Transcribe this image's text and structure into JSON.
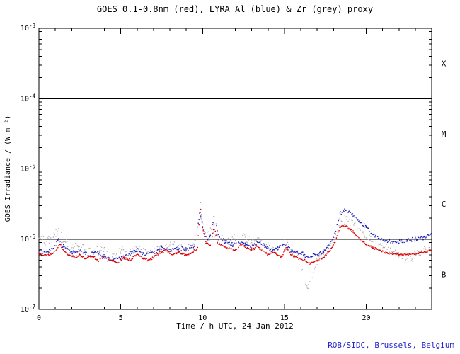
{
  "chart_data": {
    "type": "scatter",
    "title": "GOES 0.1-0.8nm (red), LYRA Al (blue) & Zr (grey) proxy",
    "xlabel": "Time / h UTC, 24 Jan 2012",
    "ylabel": "GOES Irradiance / (W m⁻²)",
    "credit": "ROB/SIDC, Brussels, Belgium",
    "x_range": [
      0,
      24
    ],
    "y_range_log10": [
      -7,
      -3
    ],
    "x_ticks": [
      0,
      5,
      10,
      15,
      20
    ],
    "x_minor_tick_step": 1,
    "y_tick_exponents": [
      -3,
      -4,
      -5,
      -6,
      -7
    ],
    "grid": false,
    "legend_position": "none",
    "threshold_lines": [
      0.0001,
      1e-05,
      1e-06
    ],
    "flare_class_labels": [
      {
        "label": "X",
        "log_center": -3.5
      },
      {
        "label": "M",
        "log_center": -4.5
      },
      {
        "label": "C",
        "log_center": -5.5
      },
      {
        "label": "B",
        "log_center": -6.5
      }
    ],
    "colors": {
      "goes_red": "#dd0000",
      "lyra_al_blue": "#2222bb",
      "lyra_zr_grey": "#a8a8a8",
      "credit_blue": "#2222cc",
      "axes": "#000000"
    },
    "series": [
      {
        "name": "GOES 0.1-0.8nm",
        "color": "#dd0000",
        "jitter_log": 0.016,
        "skip_fraction": 0.05,
        "dot_radius": 0.8,
        "points": [
          [
            0.0,
            6.2e-07
          ],
          [
            0.3,
            5.8e-07
          ],
          [
            0.6,
            6e-07
          ],
          [
            1.0,
            6.5e-07
          ],
          [
            1.3,
            8.5e-07
          ],
          [
            1.5,
            7e-07
          ],
          [
            1.8,
            6e-07
          ],
          [
            2.2,
            5.5e-07
          ],
          [
            2.5,
            6e-07
          ],
          [
            2.8,
            5.2e-07
          ],
          [
            3.2,
            5.8e-07
          ],
          [
            3.6,
            5e-07
          ],
          [
            4.0,
            5.5e-07
          ],
          [
            4.4,
            5e-07
          ],
          [
            4.8,
            4.6e-07
          ],
          [
            5.2,
            5.5e-07
          ],
          [
            5.6,
            5e-07
          ],
          [
            6.0,
            6.2e-07
          ],
          [
            6.3,
            5.5e-07
          ],
          [
            6.7,
            5e-07
          ],
          [
            7.0,
            5.5e-07
          ],
          [
            7.4,
            6.5e-07
          ],
          [
            7.8,
            7e-07
          ],
          [
            8.1,
            6e-07
          ],
          [
            8.5,
            6.5e-07
          ],
          [
            9.0,
            6e-07
          ],
          [
            9.4,
            6.5e-07
          ],
          [
            9.7,
            7.5e-07
          ],
          [
            9.85,
            3.3e-06
          ],
          [
            10.0,
            1.5e-06
          ],
          [
            10.2,
            9e-07
          ],
          [
            10.5,
            8e-07
          ],
          [
            10.7,
            1.6e-06
          ],
          [
            10.9,
            9e-07
          ],
          [
            11.2,
            8e-07
          ],
          [
            11.5,
            7.5e-07
          ],
          [
            12.0,
            7e-07
          ],
          [
            12.4,
            8.5e-07
          ],
          [
            12.7,
            7.5e-07
          ],
          [
            13.0,
            7e-07
          ],
          [
            13.3,
            8e-07
          ],
          [
            13.6,
            7e-07
          ],
          [
            14.0,
            6e-07
          ],
          [
            14.4,
            6.5e-07
          ],
          [
            14.8,
            5.5e-07
          ],
          [
            15.1,
            7.5e-07
          ],
          [
            15.4,
            6e-07
          ],
          [
            15.8,
            5.5e-07
          ],
          [
            16.2,
            5e-07
          ],
          [
            16.6,
            4.5e-07
          ],
          [
            17.0,
            5e-07
          ],
          [
            17.4,
            5.5e-07
          ],
          [
            17.8,
            7e-07
          ],
          [
            18.1,
            9e-07
          ],
          [
            18.4,
            1.5e-06
          ],
          [
            18.7,
            1.6e-06
          ],
          [
            19.0,
            1.4e-06
          ],
          [
            19.3,
            1.2e-06
          ],
          [
            19.6,
            1e-06
          ],
          [
            20.0,
            8.5e-07
          ],
          [
            20.4,
            7.5e-07
          ],
          [
            20.8,
            7e-07
          ],
          [
            21.2,
            6.5e-07
          ],
          [
            21.6,
            6.2e-07
          ],
          [
            22.0,
            6e-07
          ],
          [
            22.5,
            6e-07
          ],
          [
            23.0,
            6.2e-07
          ],
          [
            23.5,
            6.5e-07
          ],
          [
            24.0,
            7e-07
          ]
        ]
      },
      {
        "name": "LYRA Al proxy",
        "color": "#2222bb",
        "jitter_log": 0.03,
        "skip_fraction": 0.15,
        "dot_radius": 0.8,
        "points": [
          [
            0.0,
            7e-07
          ],
          [
            0.4,
            6.5e-07
          ],
          [
            0.8,
            7e-07
          ],
          [
            1.2,
            9.5e-07
          ],
          [
            1.5,
            8e-07
          ],
          [
            2.0,
            6.5e-07
          ],
          [
            2.5,
            7e-07
          ],
          [
            3.0,
            6e-07
          ],
          [
            3.5,
            6.5e-07
          ],
          [
            4.0,
            5.5e-07
          ],
          [
            4.5,
            5e-07
          ],
          [
            5.0,
            5.5e-07
          ],
          [
            5.5,
            6e-07
          ],
          [
            6.0,
            7e-07
          ],
          [
            6.5,
            6e-07
          ],
          [
            7.0,
            6.5e-07
          ],
          [
            7.5,
            7.5e-07
          ],
          [
            8.0,
            7e-07
          ],
          [
            8.5,
            7.5e-07
          ],
          [
            9.0,
            7e-07
          ],
          [
            9.5,
            8e-07
          ],
          [
            9.85,
            2.5e-06
          ],
          [
            10.1,
            1.2e-06
          ],
          [
            10.4,
            9.5e-07
          ],
          [
            10.7,
            2e-06
          ],
          [
            11.0,
            1.1e-06
          ],
          [
            11.4,
            9e-07
          ],
          [
            11.8,
            8.5e-07
          ],
          [
            12.2,
            9.5e-07
          ],
          [
            12.6,
            8.5e-07
          ],
          [
            13.0,
            8e-07
          ],
          [
            13.4,
            9e-07
          ],
          [
            13.8,
            8e-07
          ],
          [
            14.2,
            7e-07
          ],
          [
            14.6,
            7.5e-07
          ],
          [
            15.0,
            8.5e-07
          ],
          [
            15.4,
            7e-07
          ],
          [
            15.8,
            6.5e-07
          ],
          [
            16.2,
            6e-07
          ],
          [
            16.6,
            5.5e-07
          ],
          [
            17.0,
            6e-07
          ],
          [
            17.4,
            6.5e-07
          ],
          [
            17.8,
            8.5e-07
          ],
          [
            18.1,
            1.2e-06
          ],
          [
            18.4,
            2.3e-06
          ],
          [
            18.7,
            2.6e-06
          ],
          [
            19.0,
            2.4e-06
          ],
          [
            19.3,
            2.1e-06
          ],
          [
            19.6,
            1.8e-06
          ],
          [
            20.0,
            1.5e-06
          ],
          [
            20.3,
            1.2e-06
          ],
          [
            20.7,
            1.05e-06
          ],
          [
            21.1,
            9.5e-07
          ],
          [
            21.5,
            9e-07
          ],
          [
            22.0,
            9e-07
          ],
          [
            22.5,
            9.5e-07
          ],
          [
            23.0,
            1e-06
          ],
          [
            23.5,
            1.05e-06
          ],
          [
            24.0,
            1.2e-06
          ]
        ]
      },
      {
        "name": "LYRA Zr proxy",
        "color": "#a8a8a8",
        "jitter_log": 0.06,
        "skip_fraction": 0.35,
        "dot_radius": 0.7,
        "points": [
          [
            0.0,
            1e-06
          ],
          [
            0.4,
            9e-07
          ],
          [
            0.8,
            1.1e-06
          ],
          [
            1.2,
            1.3e-06
          ],
          [
            1.6,
            9e-07
          ],
          [
            2.0,
            7.5e-07
          ],
          [
            2.4,
            8.5e-07
          ],
          [
            2.8,
            7e-07
          ],
          [
            3.2,
            8e-07
          ],
          [
            3.6,
            6.5e-07
          ],
          [
            4.0,
            7.5e-07
          ],
          [
            4.5,
            6e-07
          ],
          [
            5.0,
            7e-07
          ],
          [
            5.5,
            6.5e-07
          ],
          [
            6.0,
            7.5e-07
          ],
          [
            6.5,
            6.5e-07
          ],
          [
            7.0,
            7e-07
          ],
          [
            7.5,
            8e-07
          ],
          [
            8.0,
            7.5e-07
          ],
          [
            8.5,
            8.5e-07
          ],
          [
            9.0,
            7.5e-07
          ],
          [
            9.5,
            8.5e-07
          ],
          [
            9.85,
            2.2e-06
          ],
          [
            10.2,
            1.1e-06
          ],
          [
            10.6,
            1.3e-06
          ],
          [
            11.0,
            1e-06
          ],
          [
            11.5,
            9e-07
          ],
          [
            12.0,
            1e-06
          ],
          [
            12.5,
            1.1e-06
          ],
          [
            13.0,
            9e-07
          ],
          [
            13.5,
            1e-06
          ],
          [
            14.0,
            8e-07
          ],
          [
            14.5,
            7e-07
          ],
          [
            15.0,
            9e-07
          ],
          [
            15.4,
            7e-07
          ],
          [
            15.8,
            5.5e-07
          ],
          [
            16.1,
            3.5e-07
          ],
          [
            16.4,
            2e-07
          ],
          [
            16.7,
            3e-07
          ],
          [
            17.0,
            5e-07
          ],
          [
            17.4,
            6.5e-07
          ],
          [
            17.8,
            8e-07
          ],
          [
            18.1,
            1e-06
          ],
          [
            18.4,
            1.8e-06
          ],
          [
            18.7,
            2e-06
          ],
          [
            19.0,
            1.8e-06
          ],
          [
            19.4,
            1.5e-06
          ],
          [
            19.8,
            1.2e-06
          ],
          [
            20.2,
            1e-06
          ],
          [
            20.6,
            9e-07
          ],
          [
            21.0,
            8e-07
          ],
          [
            21.5,
            7e-07
          ],
          [
            22.0,
            6e-07
          ],
          [
            22.4,
            5e-07
          ],
          [
            22.8,
            5.5e-07
          ],
          [
            23.2,
            6.5e-07
          ],
          [
            23.6,
            7e-07
          ],
          [
            24.0,
            7.5e-07
          ]
        ]
      }
    ]
  }
}
